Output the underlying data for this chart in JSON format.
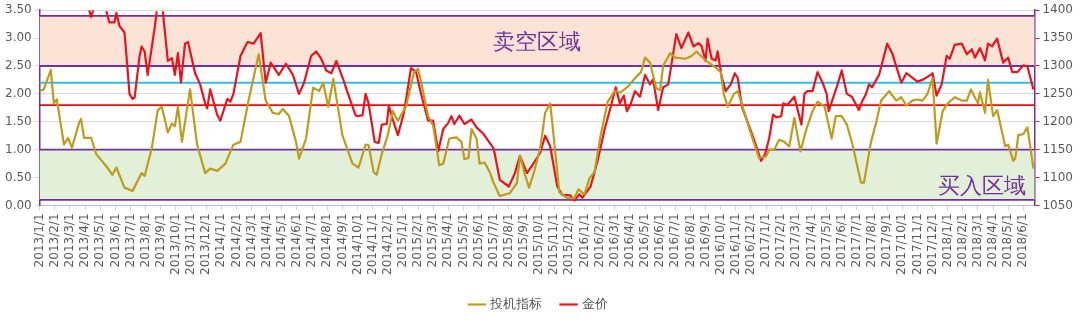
{
  "chart_data": {
    "type": "line",
    "xlim": [
      "2013-01-01",
      "2018-06-23"
    ],
    "xticks": [
      {
        "value": "2013-01-01",
        "label": "2013/1/1"
      },
      {
        "value": "2013-02-01",
        "label": "2013/2/1"
      },
      {
        "value": "2013-03-01",
        "label": "2013/3/1"
      },
      {
        "value": "2013-04-01",
        "label": "2013/4/1"
      },
      {
        "value": "2013-05-01",
        "label": "2013/5/1"
      },
      {
        "value": "2013-06-01",
        "label": "2013/6/1"
      },
      {
        "value": "2013-07-01",
        "label": "2013/7/1"
      },
      {
        "value": "2013-08-01",
        "label": "2013/8/1"
      },
      {
        "value": "2013-09-01",
        "label": "2013/9/1"
      },
      {
        "value": "2013-10-01",
        "label": "2013/10/1"
      },
      {
        "value": "2013-11-01",
        "label": "2013/11/1"
      },
      {
        "value": "2013-12-01",
        "label": "2013/12/1"
      },
      {
        "value": "2014-01-01",
        "label": "2014/1/1"
      },
      {
        "value": "2014-02-01",
        "label": "2014/2/1"
      },
      {
        "value": "2014-03-01",
        "label": "2014/3/1"
      },
      {
        "value": "2014-04-01",
        "label": "2014/4/1"
      },
      {
        "value": "2014-05-01",
        "label": "2014/5/1"
      },
      {
        "value": "2014-06-01",
        "label": "2014/6/1"
      },
      {
        "value": "2014-07-01",
        "label": "2014/7/1"
      },
      {
        "value": "2014-08-01",
        "label": "2014/8/1"
      },
      {
        "value": "2014-09-01",
        "label": "2014/9/1"
      },
      {
        "value": "2014-10-01",
        "label": "2014/10/1"
      },
      {
        "value": "2014-11-01",
        "label": "2014/11/1"
      },
      {
        "value": "2014-12-01",
        "label": "2014/12/1"
      },
      {
        "value": "2015-01-01",
        "label": "2015/1/1"
      },
      {
        "value": "2015-02-01",
        "label": "2015/2/1"
      },
      {
        "value": "2015-03-01",
        "label": "2015/3/1"
      },
      {
        "value": "2015-04-01",
        "label": "2015/4/1"
      },
      {
        "value": "2015-05-01",
        "label": "2015/5/1"
      },
      {
        "value": "2015-06-01",
        "label": "2015/6/1"
      },
      {
        "value": "2015-07-01",
        "label": "2015/7/1"
      },
      {
        "value": "2015-08-01",
        "label": "2015/8/1"
      },
      {
        "value": "2015-09-01",
        "label": "2015/9/1"
      },
      {
        "value": "2015-10-01",
        "label": "2015/10/1"
      },
      {
        "value": "2015-11-01",
        "label": "2015/11/1"
      },
      {
        "value": "2015-12-01",
        "label": "2015/12/1"
      },
      {
        "value": "2016-01-01",
        "label": "2016/1/1"
      },
      {
        "value": "2016-02-01",
        "label": "2016/2/1"
      },
      {
        "value": "2016-03-01",
        "label": "2016/3/1"
      },
      {
        "value": "2016-04-01",
        "label": "2016/4/1"
      },
      {
        "value": "2016-05-01",
        "label": "2016/5/1"
      },
      {
        "value": "2016-06-01",
        "label": "2016/6/1"
      },
      {
        "value": "2016-07-01",
        "label": "2016/7/1"
      },
      {
        "value": "2016-08-01",
        "label": "2016/8/1"
      },
      {
        "value": "2016-09-01",
        "label": "2016/9/1"
      },
      {
        "value": "2016-10-01",
        "label": "2016/10/1"
      },
      {
        "value": "2016-11-01",
        "label": "2016/11/1"
      },
      {
        "value": "2016-12-01",
        "label": "2016/12/1"
      },
      {
        "value": "2017-01-01",
        "label": "2017/1/1"
      },
      {
        "value": "2017-02-01",
        "label": "2017/2/1"
      },
      {
        "value": "2017-03-01",
        "label": "2017/3/1"
      },
      {
        "value": "2017-04-01",
        "label": "2017/4/1"
      },
      {
        "value": "2017-05-01",
        "label": "2017/5/1"
      },
      {
        "value": "2017-06-01",
        "label": "2017/6/1"
      },
      {
        "value": "2017-07-01",
        "label": "2017/7/1"
      },
      {
        "value": "2017-08-01",
        "label": "2017/8/1"
      },
      {
        "value": "2017-09-01",
        "label": "2017/9/1"
      },
      {
        "value": "2017-10-01",
        "label": "2017/10/1"
      },
      {
        "value": "2017-11-01",
        "label": "2017/11/1"
      },
      {
        "value": "2017-12-01",
        "label": "2017/12/1"
      },
      {
        "value": "2018-01-01",
        "label": "2018/1/1"
      },
      {
        "value": "2018-02-01",
        "label": "2018/2/1"
      },
      {
        "value": "2018-03-01",
        "label": "2018/3/1"
      },
      {
        "value": "2018-04-01",
        "label": "2018/4/1"
      },
      {
        "value": "2018-05-01",
        "label": "2018/5/1"
      },
      {
        "value": "2018-06-01",
        "label": "2018/6/1"
      }
    ],
    "ylim": [
      0,
      3.5
    ],
    "yticks": [
      {
        "value": 0,
        "label": "0.00"
      },
      {
        "value": 0.5,
        "label": "0.50"
      },
      {
        "value": 1,
        "label": "1.00"
      },
      {
        "value": 1.5,
        "label": "1.50"
      },
      {
        "value": 2,
        "label": "2.00"
      },
      {
        "value": 2.5,
        "label": "2.50"
      },
      {
        "value": 3,
        "label": "3.00"
      },
      {
        "value": 3.5,
        "label": "3.50"
      }
    ],
    "y2lim": [
      1050,
      1400
    ],
    "y2ticks": [
      1050,
      1100,
      1150,
      1200,
      1250,
      1300,
      1350,
      1400
    ],
    "grid": "y",
    "legend": "bottom",
    "marker": "none",
    "line_style": "solid",
    "bands": [
      {
        "axis": "y",
        "from": 2.5,
        "to": 3.4,
        "label": "卖空区域",
        "color": "#fbe4d5"
      },
      {
        "axis": "y",
        "from": 0.1,
        "to": 1.0,
        "label": "买入区域",
        "color": "#e2efd9"
      }
    ],
    "ref_lines": [
      {
        "axis": "y",
        "value": 3.4,
        "color": "#7030a0"
      },
      {
        "axis": "y",
        "value": 2.5,
        "color": "#7030a0"
      },
      {
        "axis": "y",
        "value": 1.0,
        "color": "#7030a0"
      },
      {
        "axis": "y",
        "value": 0.1,
        "color": "#7030a0"
      },
      {
        "axis": "y2",
        "value": 1270,
        "color": "#33bbee"
      },
      {
        "axis": "y2",
        "value": 1230,
        "color": "#e01010"
      }
    ],
    "series": [
      {
        "name": "投机指标",
        "color": "#bf9b1e",
        "x": [
          "2013-01-01",
          "2013-01-09",
          "2013-01-23",
          "2013-01-29",
          "2013-02-05",
          "2013-02-19",
          "2013-02-27",
          "2013-03-05",
          "2013-03-19",
          "2013-03-23",
          "2013-03-29",
          "2013-04-13",
          "2013-04-23",
          "2013-05-15",
          "2013-05-25",
          "2013-06-03",
          "2013-06-19",
          "2013-07-05",
          "2013-07-23",
          "2013-07-29",
          "2013-08-13",
          "2013-08-25",
          "2013-09-03",
          "2013-09-15",
          "2013-09-23",
          "2013-09-29",
          "2013-10-05",
          "2013-10-13",
          "2013-10-29",
          "2013-11-13",
          "2013-11-29",
          "2013-12-09",
          "2013-12-23",
          "2014-01-09",
          "2014-01-25",
          "2014-02-09",
          "2014-02-25",
          "2014-03-15",
          "2014-03-29",
          "2014-04-13",
          "2014-04-25",
          "2014-05-03",
          "2014-05-15",
          "2014-05-29",
          "2014-06-05",
          "2014-06-19",
          "2014-07-03",
          "2014-07-15",
          "2014-07-23",
          "2014-08-03",
          "2014-08-13",
          "2014-09-01",
          "2014-09-21",
          "2014-10-03",
          "2014-10-17",
          "2014-10-23",
          "2014-11-03",
          "2014-11-09",
          "2014-11-19",
          "2014-12-01",
          "2014-12-11",
          "2014-12-21",
          "2015-01-07",
          "2015-01-23",
          "2015-02-01",
          "2015-02-07",
          "2015-02-21",
          "2015-03-01",
          "2015-03-13",
          "2015-03-21",
          "2015-04-03",
          "2015-04-17",
          "2015-04-27",
          "2015-05-03",
          "2015-05-11",
          "2015-05-17",
          "2015-05-27",
          "2015-06-03",
          "2015-06-13",
          "2015-06-23",
          "2015-07-01",
          "2015-07-13",
          "2015-08-03",
          "2015-08-17",
          "2015-08-23",
          "2015-09-03",
          "2015-09-11",
          "2015-09-21",
          "2015-10-03",
          "2015-10-13",
          "2015-10-23",
          "2015-11-01",
          "2015-11-11",
          "2015-11-27",
          "2015-12-11",
          "2015-12-19",
          "2016-01-01",
          "2016-01-11",
          "2016-01-21",
          "2016-02-03",
          "2016-02-17",
          "2016-03-01",
          "2016-03-13",
          "2016-03-27",
          "2016-04-11",
          "2016-04-23",
          "2016-05-01",
          "2016-05-11",
          "2016-05-23",
          "2016-06-01",
          "2016-06-07",
          "2016-06-21",
          "2016-07-01",
          "2016-07-21",
          "2016-08-03",
          "2016-08-13",
          "2016-09-01",
          "2016-09-21",
          "2016-10-01",
          "2016-10-07",
          "2016-10-15",
          "2016-10-27",
          "2016-11-05",
          "2016-11-17",
          "2016-12-03",
          "2016-12-17",
          "2017-01-01",
          "2017-01-07",
          "2017-01-17",
          "2017-01-27",
          "2017-02-07",
          "2017-02-17",
          "2017-02-27",
          "2017-03-09",
          "2017-03-21",
          "2017-04-03",
          "2017-04-13",
          "2017-04-27",
          "2017-05-11",
          "2017-05-19",
          "2017-06-01",
          "2017-06-11",
          "2017-06-21",
          "2017-07-09",
          "2017-07-15",
          "2017-07-29",
          "2017-08-09",
          "2017-08-19",
          "2017-09-05",
          "2017-09-19",
          "2017-09-29",
          "2017-10-09",
          "2017-10-21",
          "2017-11-01",
          "2017-11-11",
          "2017-11-21",
          "2017-12-01",
          "2017-12-09",
          "2017-12-21",
          "2018-01-01",
          "2018-01-15",
          "2018-01-29",
          "2018-02-09",
          "2018-02-17",
          "2018-03-01",
          "2018-03-05",
          "2018-03-15",
          "2018-03-21",
          "2018-04-01",
          "2018-04-09",
          "2018-04-25",
          "2018-05-01",
          "2018-05-11",
          "2018-05-15",
          "2018-05-21",
          "2018-06-01",
          "2018-06-09",
          "2018-06-21"
        ],
        "values": [
          2.05,
          2.08,
          2.43,
          1.83,
          1.9,
          1.09,
          1.21,
          1.04,
          1.48,
          1.55,
          1.21,
          1.21,
          0.92,
          0.68,
          0.55,
          0.68,
          0.32,
          0.26,
          0.58,
          0.53,
          1.02,
          1.71,
          1.77,
          1.31,
          1.47,
          1.42,
          1.77,
          1.14,
          2.08,
          1.09,
          0.58,
          0.66,
          0.62,
          0.75,
          1.09,
          1.14,
          1.88,
          2.71,
          1.88,
          1.66,
          1.64,
          1.73,
          1.61,
          1.14,
          0.84,
          1.2,
          2.11,
          2.05,
          2.2,
          1.77,
          2.27,
          1.26,
          0.75,
          0.68,
          1.09,
          1.08,
          0.6,
          0.55,
          0.92,
          1.26,
          1.69,
          1.52,
          1.77,
          2.39,
          2.45,
          2.22,
          1.6,
          1.43,
          0.72,
          0.75,
          1.2,
          1.22,
          1.14,
          0.83,
          0.85,
          1.37,
          1.2,
          0.75,
          0.77,
          0.6,
          0.4,
          0.17,
          0.22,
          0.4,
          0.89,
          0.55,
          0.32,
          0.6,
          1.02,
          1.66,
          1.83,
          1.14,
          0.24,
          0.13,
          0.13,
          0.29,
          0.2,
          0.49,
          0.6,
          1.26,
          1.86,
          2.05,
          2.03,
          2.13,
          2.28,
          2.39,
          2.65,
          2.56,
          2.1,
          2.07,
          2.51,
          2.73,
          2.65,
          2.63,
          2.68,
          2.76,
          2.6,
          2.47,
          2.39,
          2.0,
          1.77,
          2.0,
          2.05,
          1.69,
          1.23,
          0.85,
          0.88,
          1.0,
          1.0,
          1.18,
          1.14,
          1.06,
          1.57,
          0.97,
          1.37,
          1.69,
          1.86,
          1.77,
          1.2,
          1.6,
          1.6,
          1.45,
          1.14,
          0.41,
          0.41,
          1.14,
          1.48,
          1.88,
          2.05,
          1.88,
          1.94,
          1.79,
          1.88,
          1.9,
          1.88,
          2.0,
          2.28,
          1.11,
          1.69,
          1.83,
          1.94,
          1.88,
          1.88,
          2.08,
          1.83,
          2.03,
          1.66,
          2.25,
          1.6,
          1.71,
          1.06,
          1.09,
          0.8,
          0.85,
          1.26,
          1.28,
          1.4,
          0.66
        ]
      },
      {
        "name": "金价",
        "color": "#e8141e",
        "axis": "y2",
        "x": [
          "2013-04-09",
          "2013-04-13",
          "2013-04-17",
          "2013-04-19",
          "2013-05-13",
          "2013-05-19",
          "2013-05-29",
          "2013-06-03",
          "2013-06-09",
          "2013-06-19",
          "2013-06-23",
          "2013-06-29",
          "2013-07-05",
          "2013-07-09",
          "2013-07-19",
          "2013-07-23",
          "2013-07-29",
          "2013-08-05",
          "2013-08-19",
          "2013-08-23",
          "2013-08-27",
          "2013-09-05",
          "2013-09-15",
          "2013-09-23",
          "2013-09-29",
          "2013-10-05",
          "2013-10-11",
          "2013-10-19",
          "2013-10-25",
          "2013-11-09",
          "2013-11-19",
          "2013-11-29",
          "2013-12-03",
          "2013-12-09",
          "2013-12-23",
          "2013-12-29",
          "2014-01-13",
          "2014-01-19",
          "2014-01-25",
          "2014-02-09",
          "2014-02-23",
          "2014-03-05",
          "2014-03-19",
          "2014-03-29",
          "2014-04-09",
          "2014-04-25",
          "2014-05-09",
          "2014-05-23",
          "2014-06-05",
          "2014-06-15",
          "2014-06-29",
          "2014-07-09",
          "2014-07-19",
          "2014-07-29",
          "2014-08-09",
          "2014-08-19",
          "2014-09-03",
          "2014-09-11",
          "2014-09-27",
          "2014-10-01",
          "2014-10-11",
          "2014-10-17",
          "2014-10-23",
          "2014-11-05",
          "2014-11-13",
          "2014-11-19",
          "2014-11-29",
          "2014-12-03",
          "2014-12-11",
          "2014-12-21",
          "2015-01-03",
          "2015-01-17",
          "2015-01-27",
          "2015-02-07",
          "2015-02-21",
          "2015-03-01",
          "2015-03-11",
          "2015-03-21",
          "2015-04-01",
          "2015-04-07",
          "2015-04-13",
          "2015-04-23",
          "2015-05-03",
          "2015-05-17",
          "2015-05-27",
          "2015-06-11",
          "2015-07-01",
          "2015-07-13",
          "2015-08-01",
          "2015-08-13",
          "2015-08-23",
          "2015-09-07",
          "2015-09-21",
          "2015-10-03",
          "2015-10-13",
          "2015-10-23",
          "2015-11-07",
          "2015-11-17",
          "2015-12-03",
          "2015-12-11",
          "2015-12-21",
          "2015-12-27",
          "2016-01-13",
          "2016-01-27",
          "2016-02-11",
          "2016-02-23",
          "2016-03-03",
          "2016-03-11",
          "2016-03-19",
          "2016-03-25",
          "2016-04-03",
          "2016-04-11",
          "2016-04-21",
          "2016-05-01",
          "2016-05-11",
          "2016-05-17",
          "2016-05-27",
          "2016-06-07",
          "2016-06-17",
          "2016-07-03",
          "2016-07-13",
          "2016-07-27",
          "2016-08-07",
          "2016-08-17",
          "2016-08-23",
          "2016-09-01",
          "2016-09-05",
          "2016-09-13",
          "2016-09-21",
          "2016-09-25",
          "2016-10-03",
          "2016-10-11",
          "2016-10-21",
          "2016-10-29",
          "2016-11-05",
          "2016-11-13",
          "2016-11-27",
          "2016-12-07",
          "2016-12-21",
          "2016-12-29",
          "2017-01-07",
          "2017-01-15",
          "2017-01-21",
          "2017-02-01",
          "2017-02-05",
          "2017-02-13",
          "2017-02-27",
          "2017-03-11",
          "2017-03-17",
          "2017-03-23",
          "2017-04-03",
          "2017-04-13",
          "2017-04-23",
          "2017-05-01",
          "2017-05-05",
          "2017-05-21",
          "2017-06-01",
          "2017-06-11",
          "2017-06-21",
          "2017-07-05",
          "2017-07-11",
          "2017-07-19",
          "2017-07-25",
          "2017-08-01",
          "2017-08-15",
          "2017-09-01",
          "2017-09-11",
          "2017-09-29",
          "2017-10-09",
          "2017-11-01",
          "2017-11-13",
          "2017-11-27",
          "2017-12-01",
          "2017-12-09",
          "2017-12-19",
          "2017-12-29",
          "2018-01-05",
          "2018-01-15",
          "2018-01-29",
          "2018-02-09",
          "2018-02-19",
          "2018-02-25",
          "2018-03-05",
          "2018-03-15",
          "2018-03-21",
          "2018-03-29",
          "2018-04-09",
          "2018-04-21",
          "2018-05-01",
          "2018-05-09",
          "2018-05-19",
          "2018-06-01",
          "2018-06-09",
          "2018-06-21"
        ],
        "values": [
          1400,
          1388,
          1400,
          null,
          1398,
          1378,
          1378,
          1395,
          1372,
          1360,
          1318,
          1250,
          1241,
          1243,
          1318,
          1335,
          1326,
          1284,
          1369,
          1398,
          null,
          1398,
          1309,
          1314,
          1284,
          1323,
          1270,
          1340,
          1343,
          1287,
          1267,
          1233,
          1224,
          1258,
          1212,
          1202,
          1241,
          1236,
          1250,
          1318,
          1343,
          1340,
          1359,
          1270,
          1306,
          1284,
          1304,
          1284,
          1250,
          1270,
          1318,
          1326,
          1313,
          1292,
          1287,
          1309,
          1275,
          1253,
          1212,
          1210,
          1212,
          1250,
          1233,
          1164,
          1162,
          1195,
          1196,
          1229,
          1204,
          1176,
          1216,
          1296,
          1290,
          1250,
          1202,
          1202,
          1147,
          1187,
          1198,
          1210,
          1196,
          1211,
          1196,
          1204,
          1190,
          1178,
          1152,
          1096,
          1084,
          1108,
          1139,
          1108,
          1127,
          1144,
          1175,
          1156,
          1084,
          1069,
          1068,
          1059,
          1070,
          1064,
          1084,
          1130,
          1187,
          1227,
          1262,
          1233,
          1247,
          1219,
          1233,
          1255,
          1245,
          1284,
          1267,
          1276,
          1221,
          1262,
          1267,
          1357,
          1332,
          1360,
          1335,
          1341,
          1336,
          1309,
          1349,
          1313,
          1310,
          1326,
          1280,
          1255,
          1267,
          1287,
          1278,
          1227,
          1193,
          1168,
          1130,
          1142,
          1170,
          1213,
          1208,
          1210,
          1233,
          1230,
          1245,
          1195,
          1250,
          1255,
          1255,
          1289,
          1270,
          1250,
          1219,
          1262,
          1292,
          1250,
          1245,
          1221,
          1236,
          1250,
          1267,
          1262,
          1284,
          1340,
          1323,
          1270,
          1287,
          1272,
          1276,
          1284,
          1287,
          1247,
          1267,
          1318,
          1313,
          1338,
          1340,
          1321,
          1330,
          1315,
          1332,
          1310,
          1340,
          1335,
          1349,
          1306,
          1315,
          1289,
          1289,
          1301,
          1299,
          1258
        ]
      }
    ]
  }
}
